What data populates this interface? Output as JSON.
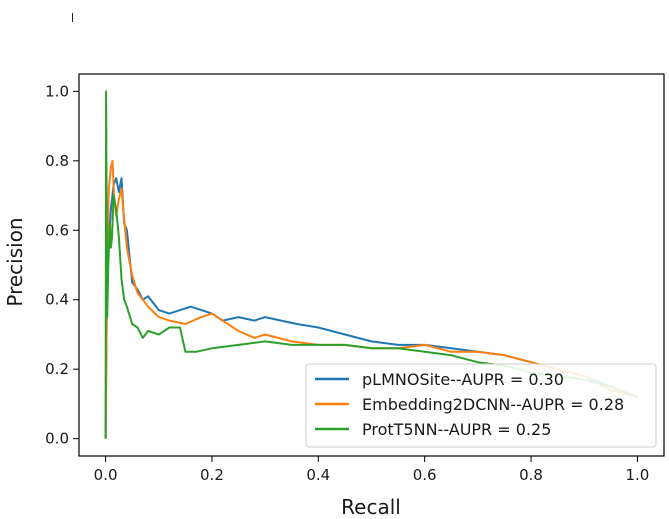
{
  "chart_data": {
    "type": "line",
    "title": "",
    "xlabel": "Recall",
    "ylabel": "Precision",
    "xlim": [
      -0.05,
      1.05
    ],
    "ylim": [
      -0.05,
      1.05
    ],
    "xticks": [
      "0.0",
      "0.2",
      "0.4",
      "0.6",
      "0.8",
      "1.0"
    ],
    "yticks": [
      "0.0",
      "0.2",
      "0.4",
      "0.6",
      "0.8",
      "1.0"
    ],
    "grid": false,
    "legend_position": "lower-right",
    "series": [
      {
        "name": "pLMNOSite--AUPR = 0.30",
        "color": "#1f77b4",
        "x": [
          0.0,
          0.002,
          0.005,
          0.01,
          0.015,
          0.02,
          0.025,
          0.03,
          0.035,
          0.04,
          0.05,
          0.06,
          0.07,
          0.08,
          0.1,
          0.12,
          0.14,
          0.16,
          0.18,
          0.2,
          0.22,
          0.25,
          0.28,
          0.3,
          0.33,
          0.36,
          0.4,
          0.45,
          0.5,
          0.55,
          0.6,
          0.65,
          0.7,
          0.75,
          0.8,
          0.85,
          0.9,
          0.95,
          1.0
        ],
        "y": [
          0.0,
          0.35,
          0.55,
          0.66,
          0.73,
          0.75,
          0.71,
          0.75,
          0.62,
          0.6,
          0.45,
          0.43,
          0.4,
          0.41,
          0.37,
          0.36,
          0.37,
          0.38,
          0.37,
          0.36,
          0.34,
          0.35,
          0.34,
          0.35,
          0.34,
          0.33,
          0.32,
          0.3,
          0.28,
          0.27,
          0.27,
          0.26,
          0.25,
          0.24,
          0.22,
          0.2,
          0.18,
          0.15,
          0.12
        ]
      },
      {
        "name": "Embedding2DCNN--AUPR = 0.28",
        "color": "#ff7f0e",
        "x": [
          0.0,
          0.003,
          0.006,
          0.01,
          0.013,
          0.016,
          0.02,
          0.025,
          0.03,
          0.035,
          0.04,
          0.05,
          0.06,
          0.08,
          0.1,
          0.12,
          0.15,
          0.18,
          0.2,
          0.22,
          0.25,
          0.28,
          0.3,
          0.35,
          0.4,
          0.45,
          0.5,
          0.55,
          0.6,
          0.65,
          0.7,
          0.75,
          0.8,
          0.85,
          0.9,
          0.95,
          1.0
        ],
        "y": [
          0.0,
          0.5,
          0.72,
          0.78,
          0.8,
          0.7,
          0.64,
          0.69,
          0.72,
          0.63,
          0.55,
          0.47,
          0.42,
          0.38,
          0.35,
          0.34,
          0.33,
          0.35,
          0.36,
          0.34,
          0.31,
          0.29,
          0.3,
          0.28,
          0.27,
          0.27,
          0.26,
          0.26,
          0.27,
          0.25,
          0.25,
          0.24,
          0.22,
          0.2,
          0.18,
          0.14,
          0.12
        ]
      },
      {
        "name": "ProtT5NN--AUPR = 0.25",
        "color": "#2ca02c",
        "x": [
          0.0,
          0.001,
          0.002,
          0.003,
          0.005,
          0.008,
          0.01,
          0.012,
          0.015,
          0.02,
          0.025,
          0.03,
          0.035,
          0.04,
          0.05,
          0.06,
          0.07,
          0.08,
          0.1,
          0.12,
          0.14,
          0.15,
          0.17,
          0.2,
          0.25,
          0.3,
          0.35,
          0.4,
          0.45,
          0.5,
          0.55,
          0.6,
          0.65,
          0.7,
          0.75,
          0.8,
          0.85,
          0.9,
          0.95,
          1.0
        ],
        "y": [
          0.0,
          1.0,
          0.6,
          0.35,
          0.5,
          0.62,
          0.55,
          0.58,
          0.7,
          0.66,
          0.58,
          0.46,
          0.4,
          0.38,
          0.33,
          0.32,
          0.29,
          0.31,
          0.3,
          0.32,
          0.32,
          0.25,
          0.25,
          0.26,
          0.27,
          0.28,
          0.27,
          0.27,
          0.27,
          0.26,
          0.26,
          0.25,
          0.24,
          0.22,
          0.21,
          0.19,
          0.18,
          0.17,
          0.15,
          0.12
        ]
      }
    ]
  }
}
